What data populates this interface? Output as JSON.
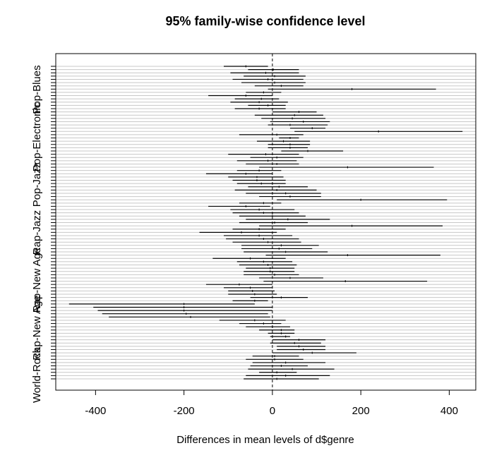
{
  "chart_data": {
    "type": "interval",
    "title": "95% family-wise confidence level",
    "xlabel": "Differences in mean levels of d$genre",
    "ylabel": "",
    "xlim": [
      -490,
      460
    ],
    "xticks": [
      -400,
      -200,
      0,
      200,
      400
    ],
    "visible_ylabels": [
      "Pop-Blues",
      "Pop-Electronic",
      "Pop-Jazz",
      "Rap-Jazz",
      "Rap-New Age",
      "Rap-New Age",
      "World-Rock"
    ],
    "reference_line": 0,
    "grid": "horizontal",
    "intervals": [
      {
        "lo": -110,
        "est": -60,
        "hi": -10
      },
      {
        "lo": -55,
        "est": 2,
        "hi": 60
      },
      {
        "lo": -95,
        "est": -15,
        "hi": 60
      },
      {
        "lo": -65,
        "est": 5,
        "hi": 75
      },
      {
        "lo": -90,
        "est": -10,
        "hi": 70
      },
      {
        "lo": -70,
        "est": 5,
        "hi": 75
      },
      {
        "lo": -40,
        "est": 20,
        "hi": 70
      },
      {
        "lo": -10,
        "est": 180,
        "hi": 370
      },
      {
        "lo": -60,
        "est": -20,
        "hi": 20
      },
      {
        "lo": -145,
        "est": -60,
        "hi": 0
      },
      {
        "lo": -85,
        "est": -25,
        "hi": 15
      },
      {
        "lo": -95,
        "est": -30,
        "hi": 35
      },
      {
        "lo": -55,
        "est": -10,
        "hi": 30
      },
      {
        "lo": -85,
        "est": -30,
        "hi": 30
      },
      {
        "lo": 0,
        "est": 60,
        "hi": 100
      },
      {
        "lo": -40,
        "est": 50,
        "hi": 115
      },
      {
        "lo": -25,
        "est": 45,
        "hi": 120
      },
      {
        "lo": -5,
        "est": 70,
        "hi": 130
      },
      {
        "lo": -10,
        "est": 40,
        "hi": 125
      },
      {
        "lo": 40,
        "est": 90,
        "hi": 120
      },
      {
        "lo": 50,
        "est": 240,
        "hi": 430
      },
      {
        "lo": -75,
        "est": 10,
        "hi": 70
      },
      {
        "lo": 15,
        "est": 40,
        "hi": 60
      },
      {
        "lo": -35,
        "est": 25,
        "hi": 85
      },
      {
        "lo": -10,
        "est": 40,
        "hi": 85
      },
      {
        "lo": -10,
        "est": 40,
        "hi": 80
      },
      {
        "lo": 20,
        "est": 80,
        "hi": 160
      },
      {
        "lo": -100,
        "est": -15,
        "hi": 60
      },
      {
        "lo": -50,
        "est": 10,
        "hi": 70
      },
      {
        "lo": -80,
        "est": -10,
        "hi": 55
      },
      {
        "lo": -60,
        "est": 10,
        "hi": 60
      },
      {
        "lo": -30,
        "est": 170,
        "hi": 365
      },
      {
        "lo": -80,
        "est": -30,
        "hi": 20
      },
      {
        "lo": -150,
        "est": -60,
        "hi": 0
      },
      {
        "lo": -100,
        "est": -35,
        "hi": 25
      },
      {
        "lo": -90,
        "est": -35,
        "hi": 30
      },
      {
        "lo": -80,
        "est": -25,
        "hi": 30
      },
      {
        "lo": -55,
        "est": 15,
        "hi": 80
      },
      {
        "lo": -85,
        "est": 10,
        "hi": 100
      },
      {
        "lo": -60,
        "est": 30,
        "hi": 110
      },
      {
        "lo": -30,
        "est": 40,
        "hi": 110
      },
      {
        "lo": 10,
        "est": 200,
        "hi": 395
      },
      {
        "lo": -75,
        "est": -20,
        "hi": 20
      },
      {
        "lo": -145,
        "est": -60,
        "hi": -5
      },
      {
        "lo": -95,
        "est": -30,
        "hi": 50
      },
      {
        "lo": -90,
        "est": -20,
        "hi": 60
      },
      {
        "lo": -75,
        "est": 0,
        "hi": 75
      },
      {
        "lo": -60,
        "est": 35,
        "hi": 130
      },
      {
        "lo": -75,
        "est": 5,
        "hi": 80
      },
      {
        "lo": -30,
        "est": 180,
        "hi": 385
      },
      {
        "lo": -90,
        "est": -30,
        "hi": 30
      },
      {
        "lo": -165,
        "est": -70,
        "hi": 10
      },
      {
        "lo": -110,
        "est": -30,
        "hi": 45
      },
      {
        "lo": -105,
        "est": -20,
        "hi": 60
      },
      {
        "lo": -90,
        "est": -10,
        "hi": 65
      },
      {
        "lo": -70,
        "est": 20,
        "hi": 105
      },
      {
        "lo": -70,
        "est": 15,
        "hi": 90
      },
      {
        "lo": -65,
        "est": 30,
        "hi": 125
      },
      {
        "lo": -15,
        "est": 170,
        "hi": 380
      },
      {
        "lo": -135,
        "est": -50,
        "hi": 30
      },
      {
        "lo": -80,
        "est": -20,
        "hi": 45
      },
      {
        "lo": -75,
        "est": -10,
        "hi": 55
      },
      {
        "lo": -60,
        "est": -5,
        "hi": 50
      },
      {
        "lo": -65,
        "est": -5,
        "hi": 50
      },
      {
        "lo": -65,
        "est": 5,
        "hi": 60
      },
      {
        "lo": -30,
        "est": 40,
        "hi": 115
      },
      {
        "lo": -20,
        "est": 165,
        "hi": 350
      },
      {
        "lo": -150,
        "est": -75,
        "hi": 0
      },
      {
        "lo": -110,
        "est": -50,
        "hi": 0
      },
      {
        "lo": -100,
        "est": -45,
        "hi": 5
      },
      {
        "lo": -100,
        "est": -40,
        "hi": 10
      },
      {
        "lo": -50,
        "est": 20,
        "hi": 80
      },
      {
        "lo": -90,
        "est": -40,
        "hi": -10
      },
      {
        "lo": -460,
        "est": -200,
        "hi": -40
      },
      {
        "lo": -405,
        "est": -200,
        "hi": 0
      },
      {
        "lo": -395,
        "est": -200,
        "hi": 0
      },
      {
        "lo": -385,
        "est": -195,
        "hi": -10
      },
      {
        "lo": -370,
        "est": -185,
        "hi": -5
      },
      {
        "lo": -120,
        "est": -40,
        "hi": 30
      },
      {
        "lo": -75,
        "est": -20,
        "hi": 20
      },
      {
        "lo": -60,
        "est": 0,
        "hi": 40
      },
      {
        "lo": -30,
        "est": 20,
        "hi": 50
      },
      {
        "lo": -10,
        "est": 20,
        "hi": 50
      },
      {
        "lo": -5,
        "est": 30,
        "hi": 40
      },
      {
        "lo": 0,
        "est": 60,
        "hi": 120
      },
      {
        "lo": -5,
        "est": 50,
        "hi": 110
      },
      {
        "lo": 10,
        "est": 60,
        "hi": 120
      },
      {
        "lo": 10,
        "est": 70,
        "hi": 120
      },
      {
        "lo": 0,
        "est": 90,
        "hi": 190
      },
      {
        "lo": -45,
        "est": 5,
        "hi": 60
      },
      {
        "lo": -60,
        "est": 5,
        "hi": 70
      },
      {
        "lo": -45,
        "est": 30,
        "hi": 120
      },
      {
        "lo": -50,
        "est": 20,
        "hi": 80
      },
      {
        "lo": -55,
        "est": 45,
        "hi": 140
      },
      {
        "lo": -30,
        "est": 10,
        "hi": 55
      },
      {
        "lo": -60,
        "est": 30,
        "hi": 130
      },
      {
        "lo": -65,
        "est": 10,
        "hi": 105
      }
    ]
  }
}
